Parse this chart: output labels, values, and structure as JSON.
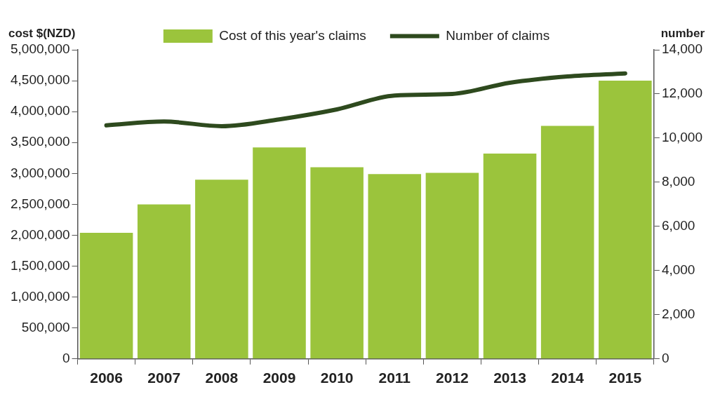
{
  "chart_data": {
    "type": "bar",
    "categories": [
      "2006",
      "2007",
      "2008",
      "2009",
      "2010",
      "2011",
      "2012",
      "2013",
      "2014",
      "2015"
    ],
    "series": [
      {
        "name": "Cost of this year's claims",
        "color": "#9bc43c",
        "values": [
          2040000,
          2500000,
          2900000,
          3420000,
          3100000,
          2990000,
          3010000,
          3320000,
          3770000,
          4500000
        ]
      },
      {
        "name": "Number of claims",
        "type": "line",
        "axis": "y2",
        "color": "#2e4a1e",
        "values": [
          10580,
          10750,
          10540,
          10850,
          11300,
          11930,
          12000,
          12510,
          12790,
          12930
        ]
      }
    ],
    "ylabel": "cost $(NZD)",
    "y2label": "number",
    "ylim": [
      0,
      5000000
    ],
    "yticks": [
      0,
      {
        "value": 500000,
        "label": "500,000"
      },
      {
        "value": 1000000,
        "label": "1,000,000"
      },
      {
        "value": 1500000,
        "label": "1,500,000"
      },
      {
        "value": 2000000,
        "label": "2,000,000"
      },
      {
        "value": 2500000,
        "label": "2,500,000"
      },
      {
        "value": 3000000,
        "label": "3,000,000"
      },
      {
        "value": 3500000,
        "label": "3,500,000"
      },
      {
        "value": 4000000,
        "label": "4,000,000"
      },
      {
        "value": 4500000,
        "label": "4,500,000"
      },
      {
        "value": 5000000,
        "label": "5,000,000"
      }
    ],
    "y2lim": [
      0,
      14000
    ],
    "y2ticks": [
      0,
      {
        "value": 2000,
        "label": "2,000"
      },
      {
        "value": 4000,
        "label": "4,000"
      },
      {
        "value": 6000,
        "label": "6,000"
      },
      {
        "value": 8000,
        "label": "8,000"
      },
      {
        "value": 10000,
        "label": "10,000"
      },
      {
        "value": 12000,
        "label": "12,000"
      },
      {
        "value": 14000,
        "label": "14,000"
      }
    ],
    "grid": false,
    "legend": "top",
    "line_style": "solid"
  }
}
